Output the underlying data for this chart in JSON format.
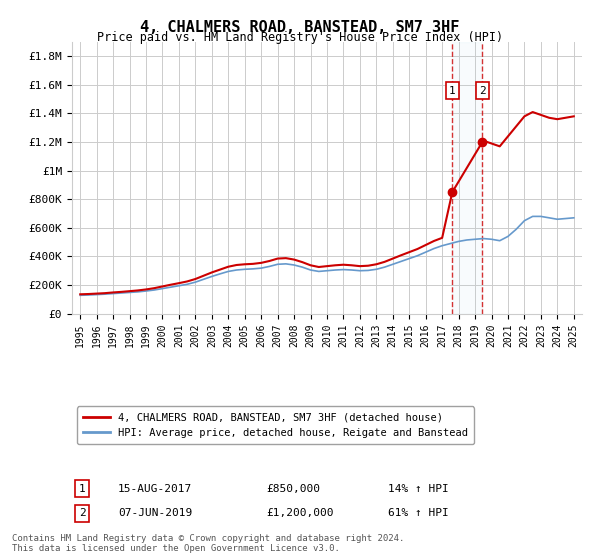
{
  "title": "4, CHALMERS ROAD, BANSTEAD, SM7 3HF",
  "subtitle": "Price paid vs. HM Land Registry's House Price Index (HPI)",
  "ylabel_ticks": [
    "£0",
    "£200K",
    "£400K",
    "£600K",
    "£800K",
    "£1M",
    "£1.2M",
    "£1.4M",
    "£1.6M",
    "£1.8M"
  ],
  "ytick_values": [
    0,
    200000,
    400000,
    600000,
    800000,
    1000000,
    1200000,
    1400000,
    1600000,
    1800000
  ],
  "ylim": [
    0,
    1900000
  ],
  "xlim_start": 1994.5,
  "xlim_end": 2025.5,
  "sale1_x": 2017.617,
  "sale1_y": 850000,
  "sale1_label": "1",
  "sale1_date": "15-AUG-2017",
  "sale1_price": "£850,000",
  "sale1_pct": "14% ↑ HPI",
  "sale2_x": 2019.44,
  "sale2_y": 1200000,
  "sale2_label": "2",
  "sale2_date": "07-JUN-2019",
  "sale2_price": "£1,200,000",
  "sale2_pct": "61% ↑ HPI",
  "red_line_color": "#cc0000",
  "blue_line_color": "#6699cc",
  "grid_color": "#cccccc",
  "background_color": "#ffffff",
  "legend_label_red": "4, CHALMERS ROAD, BANSTEAD, SM7 3HF (detached house)",
  "legend_label_blue": "HPI: Average price, detached house, Reigate and Banstead",
  "footer": "Contains HM Land Registry data © Crown copyright and database right 2024.\nThis data is licensed under the Open Government Licence v3.0.",
  "hpi_years": [
    1995,
    1995.5,
    1996,
    1996.5,
    1997,
    1997.5,
    1998,
    1998.5,
    1999,
    1999.5,
    2000,
    2000.5,
    2001,
    2001.5,
    2002,
    2002.5,
    2003,
    2003.5,
    2004,
    2004.5,
    2005,
    2005.5,
    2006,
    2006.5,
    2007,
    2007.5,
    2008,
    2008.5,
    2009,
    2009.5,
    2010,
    2010.5,
    2011,
    2011.5,
    2012,
    2012.5,
    2013,
    2013.5,
    2014,
    2014.5,
    2015,
    2015.5,
    2016,
    2016.5,
    2017,
    2017.5,
    2018,
    2018.5,
    2019,
    2019.5,
    2020,
    2020.5,
    2021,
    2021.5,
    2022,
    2022.5,
    2023,
    2023.5,
    2024,
    2024.5,
    2025
  ],
  "hpi_values": [
    128000,
    130000,
    133000,
    136000,
    140000,
    144000,
    148000,
    152000,
    158000,
    165000,
    175000,
    185000,
    195000,
    205000,
    220000,
    240000,
    260000,
    278000,
    295000,
    305000,
    310000,
    313000,
    318000,
    330000,
    345000,
    348000,
    340000,
    325000,
    305000,
    295000,
    300000,
    305000,
    308000,
    305000,
    300000,
    302000,
    310000,
    325000,
    345000,
    365000,
    385000,
    405000,
    430000,
    455000,
    475000,
    490000,
    505000,
    515000,
    520000,
    525000,
    520000,
    510000,
    540000,
    590000,
    650000,
    680000,
    680000,
    670000,
    660000,
    665000,
    670000
  ],
  "red_years": [
    1995,
    1995.5,
    1996,
    1996.5,
    1997,
    1997.5,
    1998,
    1998.5,
    1999,
    1999.5,
    2000,
    2000.5,
    2001,
    2001.5,
    2002,
    2002.5,
    2003,
    2003.5,
    2004,
    2004.5,
    2005,
    2005.5,
    2006,
    2006.5,
    2007,
    2007.5,
    2008,
    2008.5,
    2009,
    2009.5,
    2010,
    2010.5,
    2011,
    2011.5,
    2012,
    2012.5,
    2013,
    2013.5,
    2014,
    2014.5,
    2015,
    2015.5,
    2016,
    2016.5,
    2017,
    2017.617,
    2019.44,
    2019.5,
    2020,
    2020.5,
    2021,
    2021.5,
    2022,
    2022.5,
    2023,
    2023.5,
    2024,
    2024.5,
    2025
  ],
  "red_values": [
    135000,
    137000,
    140000,
    143000,
    148000,
    152000,
    157000,
    162000,
    169000,
    178000,
    190000,
    202000,
    213000,
    225000,
    242000,
    265000,
    288000,
    308000,
    328000,
    340000,
    345000,
    348000,
    355000,
    368000,
    385000,
    388000,
    378000,
    360000,
    338000,
    326000,
    332000,
    338000,
    342000,
    338000,
    332000,
    335000,
    345000,
    362000,
    385000,
    408000,
    430000,
    452000,
    480000,
    508000,
    530000,
    850000,
    1200000,
    1210000,
    1190000,
    1170000,
    1240000,
    1310000,
    1380000,
    1410000,
    1390000,
    1370000,
    1360000,
    1370000,
    1380000
  ]
}
